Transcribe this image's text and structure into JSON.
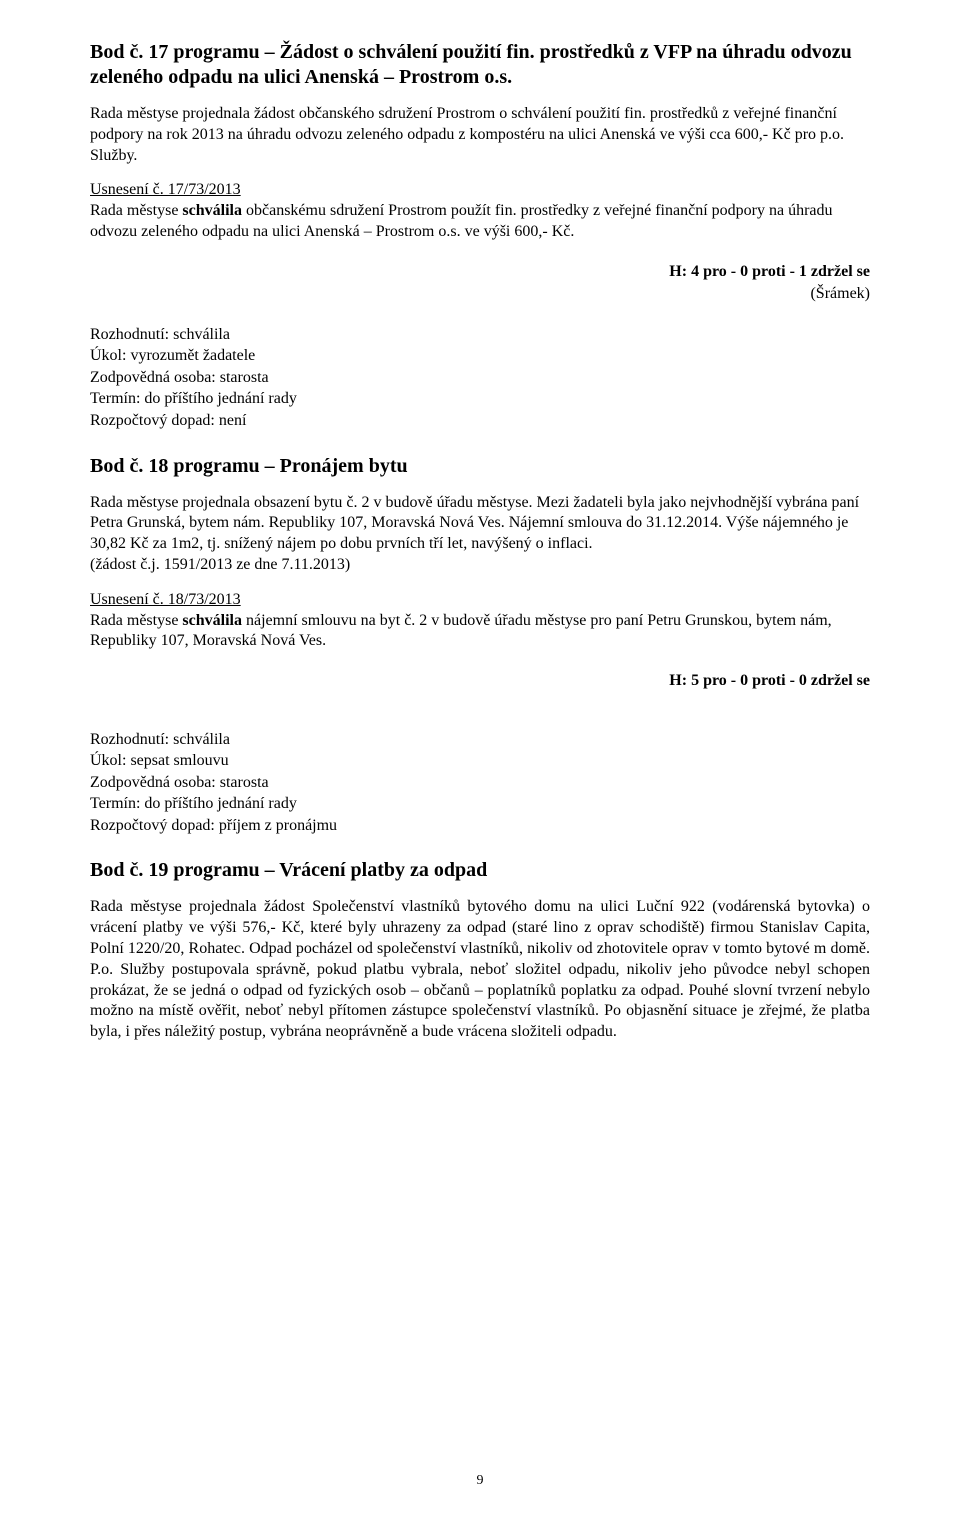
{
  "bod17": {
    "title": "Bod č. 17 programu – Žádost o schválení použití fin. prostředků z VFP na úhradu odvozu zeleného odpadu na ulici Anenská – Prostrom o.s.",
    "para1": "Rada městyse projednala žádost občanského sdružení Prostrom o schválení použití fin. prostředků z veřejné finanční podpory na rok 2013 na úhradu odvozu zeleného odpadu z kompostéru na ulici Anenská ve výši cca 600,- Kč pro p.o. Služby.",
    "usneseni_label": "Usnesení č. 17/73/2013",
    "usneseni_pre": "Rada městyse ",
    "usneseni_bold": "schválila",
    "usneseni_post": " občanskému sdružení Prostrom použít fin. prostředky z veřejné finanční podpory na úhradu odvozu zeleného odpadu na ulici Anenská – Prostrom o.s. ve výši 600,- Kč.",
    "vote": "H: 4 pro - 0 proti - 1 zdržel se",
    "vote_sub": "(Šrámek)",
    "meta": {
      "rozhodnuti": "Rozhodnutí: schválila",
      "ukol": "Úkol: vyrozumět žadatele",
      "zodp": "Zodpovědná osoba: starosta",
      "termin": "Termín: do příštího jednání rady",
      "rozp": "Rozpočtový dopad: není"
    }
  },
  "bod18": {
    "title": "Bod č. 18 programu – Pronájem bytu",
    "para1": "Rada městyse projednala obsazení bytu č. 2 v budově úřadu městyse. Mezi žadateli byla jako nejvhodnější vybrána paní Petra Grunská, bytem nám. Republiky 107, Moravská Nová Ves. Nájemní smlouva do 31.12.2014. Výše nájemného je 30,82 Kč za 1m2, tj. snížený nájem po dobu prvních tří let, navýšený o inflaci.",
    "para1b": "(žádost č.j. 1591/2013 ze dne 7.11.2013)",
    "usneseni_label": "Usnesení č. 18/73/2013",
    "usneseni_pre": "Rada městyse ",
    "usneseni_bold": "schválila",
    "usneseni_post": " nájemní smlouvu na byt č. 2 v budově úřadu městyse pro paní Petru Grunskou, bytem  nám, Republiky 107, Moravská Nová Ves.",
    "vote": "H: 5 pro - 0 proti - 0 zdržel se",
    "meta": {
      "rozhodnuti": "Rozhodnutí: schválila",
      "ukol": "Úkol: sepsat smlouvu",
      "zodp": "Zodpovědná osoba: starosta",
      "termin": "Termín: do příštího jednání rady",
      "rozp": "Rozpočtový dopad: příjem z pronájmu"
    }
  },
  "bod19": {
    "title": "Bod č. 19 programu – Vrácení platby za odpad",
    "para1": "Rada městyse projednala žádost Společenství vlastníků bytového domu na ulici Luční 922 (vodárenská bytovka) o vrácení platby ve výši 576,- Kč, které byly uhrazeny za odpad (staré lino z oprav schodiště) firmou Stanislav Capita, Polní 1220/20, Rohatec. Odpad pocházel od společenství vlastníků, nikoliv od zhotovitele oprav v tomto bytové m domě. P.o. Služby postupovala správně, pokud platbu vybrala, neboť složitel odpadu, nikoliv jeho původce nebyl schopen prokázat, že se jedná o odpad od fyzických osob – občanů – poplatníků poplatku za odpad. Pouhé slovní tvrzení nebylo možno na místě ověřit, neboť nebyl přítomen zástupce společenství vlastníků. Po objasnění situace je zřejmé, že platba byla, i přes náležitý postup, vybrána neoprávněně a bude vrácena složiteli odpadu."
  },
  "page_number": "9"
}
